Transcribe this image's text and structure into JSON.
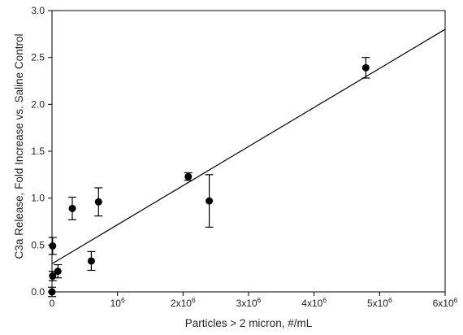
{
  "chart_data": {
    "type": "scatter",
    "xlabel": "Particles > 2 micron, #/mL",
    "ylabel": "C3a Release, Fold Increase vs. Saline Control",
    "xlim": [
      0,
      6000000
    ],
    "ylim": [
      0,
      3.0
    ],
    "x_ticks": [
      {
        "value": 0,
        "label": "0"
      },
      {
        "value": 1000000,
        "label": "10",
        "sup": "6"
      },
      {
        "value": 2000000,
        "label": "2x10",
        "sup": "6"
      },
      {
        "value": 3000000,
        "label": "3x10",
        "sup": "6"
      },
      {
        "value": 4000000,
        "label": "4x10",
        "sup": "6"
      },
      {
        "value": 5000000,
        "label": "5x10",
        "sup": "6"
      },
      {
        "value": 6000000,
        "label": "6x10",
        "sup": "6"
      }
    ],
    "y_ticks": [
      {
        "value": 0.0,
        "label": "0.0"
      },
      {
        "value": 0.5,
        "label": "0.5"
      },
      {
        "value": 1.0,
        "label": "1.0"
      },
      {
        "value": 1.5,
        "label": "1.5"
      },
      {
        "value": 2.0,
        "label": "2.0"
      },
      {
        "value": 2.5,
        "label": "2.5"
      },
      {
        "value": 3.0,
        "label": "3.0"
      }
    ],
    "points": [
      {
        "x": 0,
        "y": 0.0,
        "err": 0.05
      },
      {
        "x": 10000,
        "y": 0.17,
        "err": 0.05
      },
      {
        "x": 10000,
        "y": 0.49,
        "err": 0.09
      },
      {
        "x": 90000,
        "y": 0.22,
        "err": 0.07
      },
      {
        "x": 310000,
        "y": 0.89,
        "err": 0.12
      },
      {
        "x": 600000,
        "y": 0.33,
        "err": 0.1
      },
      {
        "x": 710000,
        "y": 0.96,
        "err": 0.15
      },
      {
        "x": 2080000,
        "y": 1.23,
        "err": 0.04
      },
      {
        "x": 2400000,
        "y": 0.97,
        "err": 0.28
      },
      {
        "x": 4790000,
        "y": 2.39,
        "err": 0.11
      }
    ],
    "fit_line": {
      "x0": 0,
      "y0": 0.3,
      "x1": 6000000,
      "y1": 2.8
    },
    "grid": false,
    "legend": "none"
  }
}
